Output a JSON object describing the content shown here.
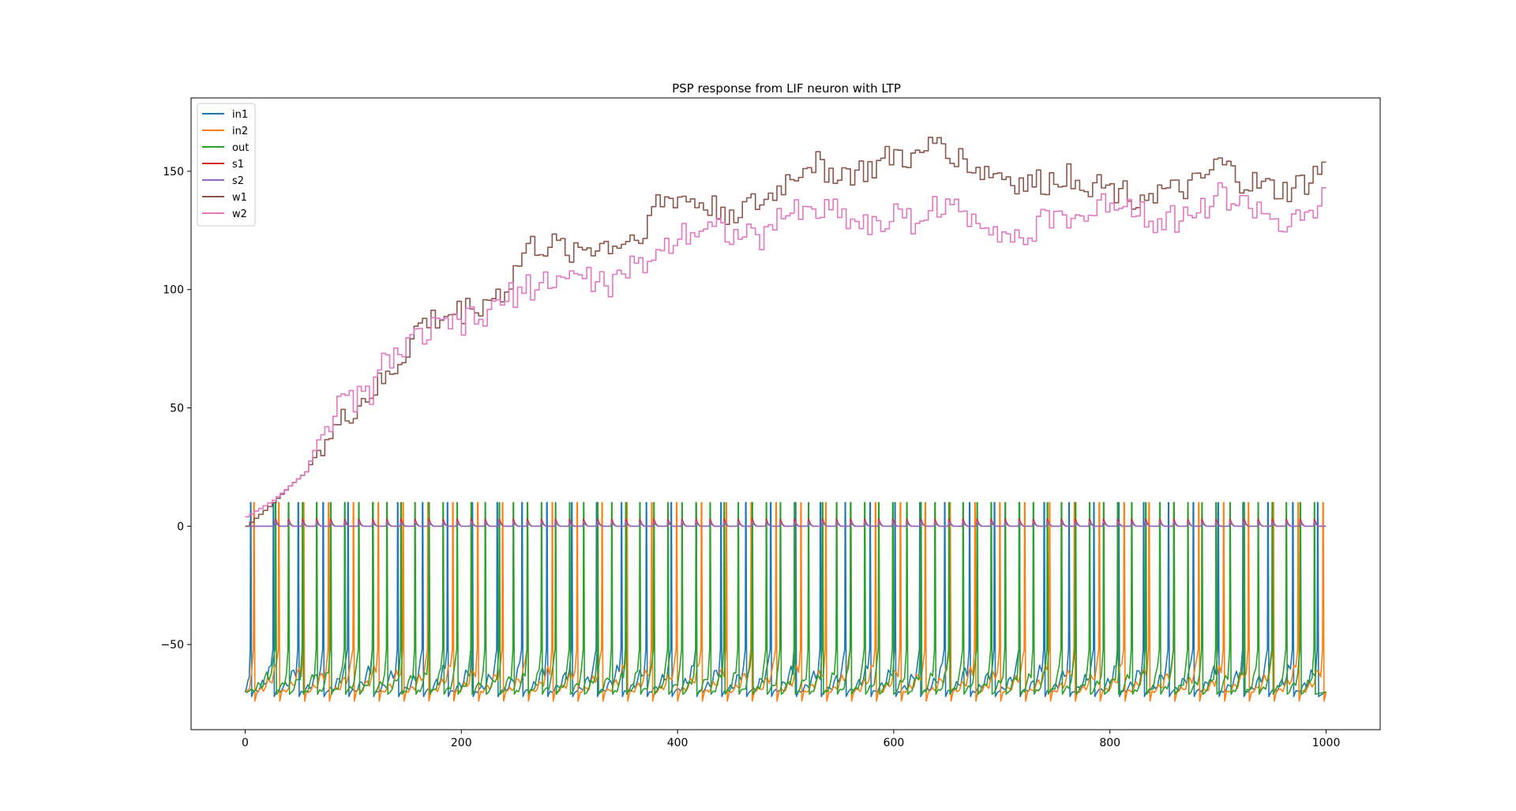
{
  "chart_data": {
    "type": "line",
    "title": "PSP response from LIF neuron with LTP",
    "xlabel": "",
    "ylabel": "",
    "xlim": [
      -50,
      1050
    ],
    "ylim": [
      -86,
      181
    ],
    "xticks": [
      0,
      200,
      400,
      600,
      800,
      1000
    ],
    "yticks": [
      -50,
      0,
      50,
      100,
      150
    ],
    "grid": false,
    "legend_position": "top-left",
    "series": [
      {
        "name": "in1",
        "color": "#1f77b4",
        "kind": "spiking membrane potential",
        "rest": -70,
        "peak": 10,
        "trough": -72,
        "spike_times": [
          5,
          26,
          49,
          72,
          95,
          118,
          141,
          164,
          187,
          210,
          233,
          256,
          279,
          302,
          325,
          348,
          371,
          394,
          417,
          440,
          463,
          486,
          509,
          532,
          555,
          578,
          601,
          624,
          647,
          670,
          693,
          716,
          739,
          762,
          785,
          808,
          831,
          854,
          877,
          900,
          923,
          946,
          969,
          992
        ]
      },
      {
        "name": "in2",
        "color": "#ff7f0e",
        "kind": "spiking membrane potential",
        "rest": -70,
        "peak": 10,
        "trough": -74,
        "spike_times": [
          8,
          31,
          54,
          77,
          100,
          123,
          146,
          169,
          192,
          215,
          238,
          261,
          284,
          307,
          330,
          353,
          376,
          399,
          422,
          445,
          468,
          491,
          514,
          537,
          560,
          583,
          606,
          629,
          652,
          675,
          698,
          721,
          744,
          767,
          790,
          813,
          836,
          859,
          882,
          905,
          928,
          951,
          974,
          997
        ]
      },
      {
        "name": "out",
        "color": "#2ca02c",
        "kind": "spiking membrane potential",
        "rest": -70,
        "peak": 10,
        "trough": -71,
        "spike_times": [
          28,
          40,
          53,
          66,
          79,
          92,
          105,
          118,
          131,
          144,
          157,
          170,
          183,
          196,
          209,
          222,
          235,
          248,
          261,
          274,
          287,
          300,
          313,
          326,
          339,
          352,
          365,
          378,
          391,
          404,
          417,
          430,
          443,
          456,
          469,
          482,
          495,
          508,
          521,
          534,
          547,
          560,
          573,
          586,
          599,
          612,
          625,
          638,
          651,
          664,
          677,
          690,
          703,
          716,
          729,
          742,
          755,
          768,
          781,
          794,
          807,
          820,
          833,
          846,
          859,
          872,
          885,
          898,
          911,
          924,
          937,
          950,
          963,
          976,
          989
        ]
      },
      {
        "name": "s1",
        "color": "#d62728",
        "kind": "spike trace",
        "baseline": 0,
        "peak": 3
      },
      {
        "name": "s2",
        "color": "#9467bd",
        "kind": "spike trace",
        "baseline": 0,
        "peak": 2
      },
      {
        "name": "w1",
        "color": "#8c564b",
        "kind": "synaptic weight",
        "x": [
          0,
          25,
          40,
          55,
          70,
          85,
          100,
          115,
          130,
          145,
          160,
          180,
          200,
          220,
          240,
          260,
          280,
          300,
          320,
          340,
          360,
          380,
          400,
          420,
          440,
          460,
          480,
          500,
          520,
          540,
          560,
          580,
          600,
          620,
          640,
          660,
          680,
          700,
          720,
          740,
          760,
          780,
          800,
          820,
          840,
          860,
          880,
          900,
          920,
          940,
          960,
          980,
          1000
        ],
        "y": [
          0,
          10,
          17,
          23,
          35,
          42,
          50,
          56,
          62,
          72,
          85,
          88,
          91,
          95,
          100,
          118,
          118,
          117,
          118,
          119,
          122,
          136,
          139,
          136,
          133,
          134,
          137,
          146,
          154,
          150,
          149,
          151,
          157,
          154,
          164,
          155,
          150,
          148,
          144,
          145,
          149,
          145,
          143,
          140,
          141,
          141,
          144,
          153,
          146,
          143,
          141,
          145,
          153
        ]
      },
      {
        "name": "w2",
        "color": "#e377c2",
        "kind": "synaptic weight",
        "x": [
          0,
          25,
          40,
          55,
          70,
          85,
          100,
          115,
          130,
          145,
          160,
          180,
          200,
          220,
          240,
          260,
          280,
          300,
          320,
          340,
          360,
          380,
          400,
          420,
          440,
          460,
          480,
          500,
          520,
          540,
          560,
          580,
          600,
          620,
          640,
          660,
          680,
          700,
          720,
          740,
          760,
          780,
          800,
          820,
          840,
          860,
          880,
          900,
          920,
          940,
          960,
          980,
          1000
        ],
        "y": [
          4,
          11,
          17,
          23,
          41,
          50,
          54,
          56,
          72,
          74,
          80,
          84,
          86,
          88,
          96,
          101,
          104,
          106,
          104,
          102,
          110,
          115,
          124,
          127,
          126,
          122,
          122,
          134,
          133,
          135,
          130,
          127,
          131,
          129,
          136,
          132,
          130,
          125,
          120,
          130,
          131,
          131,
          138,
          136,
          130,
          130,
          133,
          140,
          136,
          134,
          126,
          129,
          141
        ]
      }
    ]
  }
}
